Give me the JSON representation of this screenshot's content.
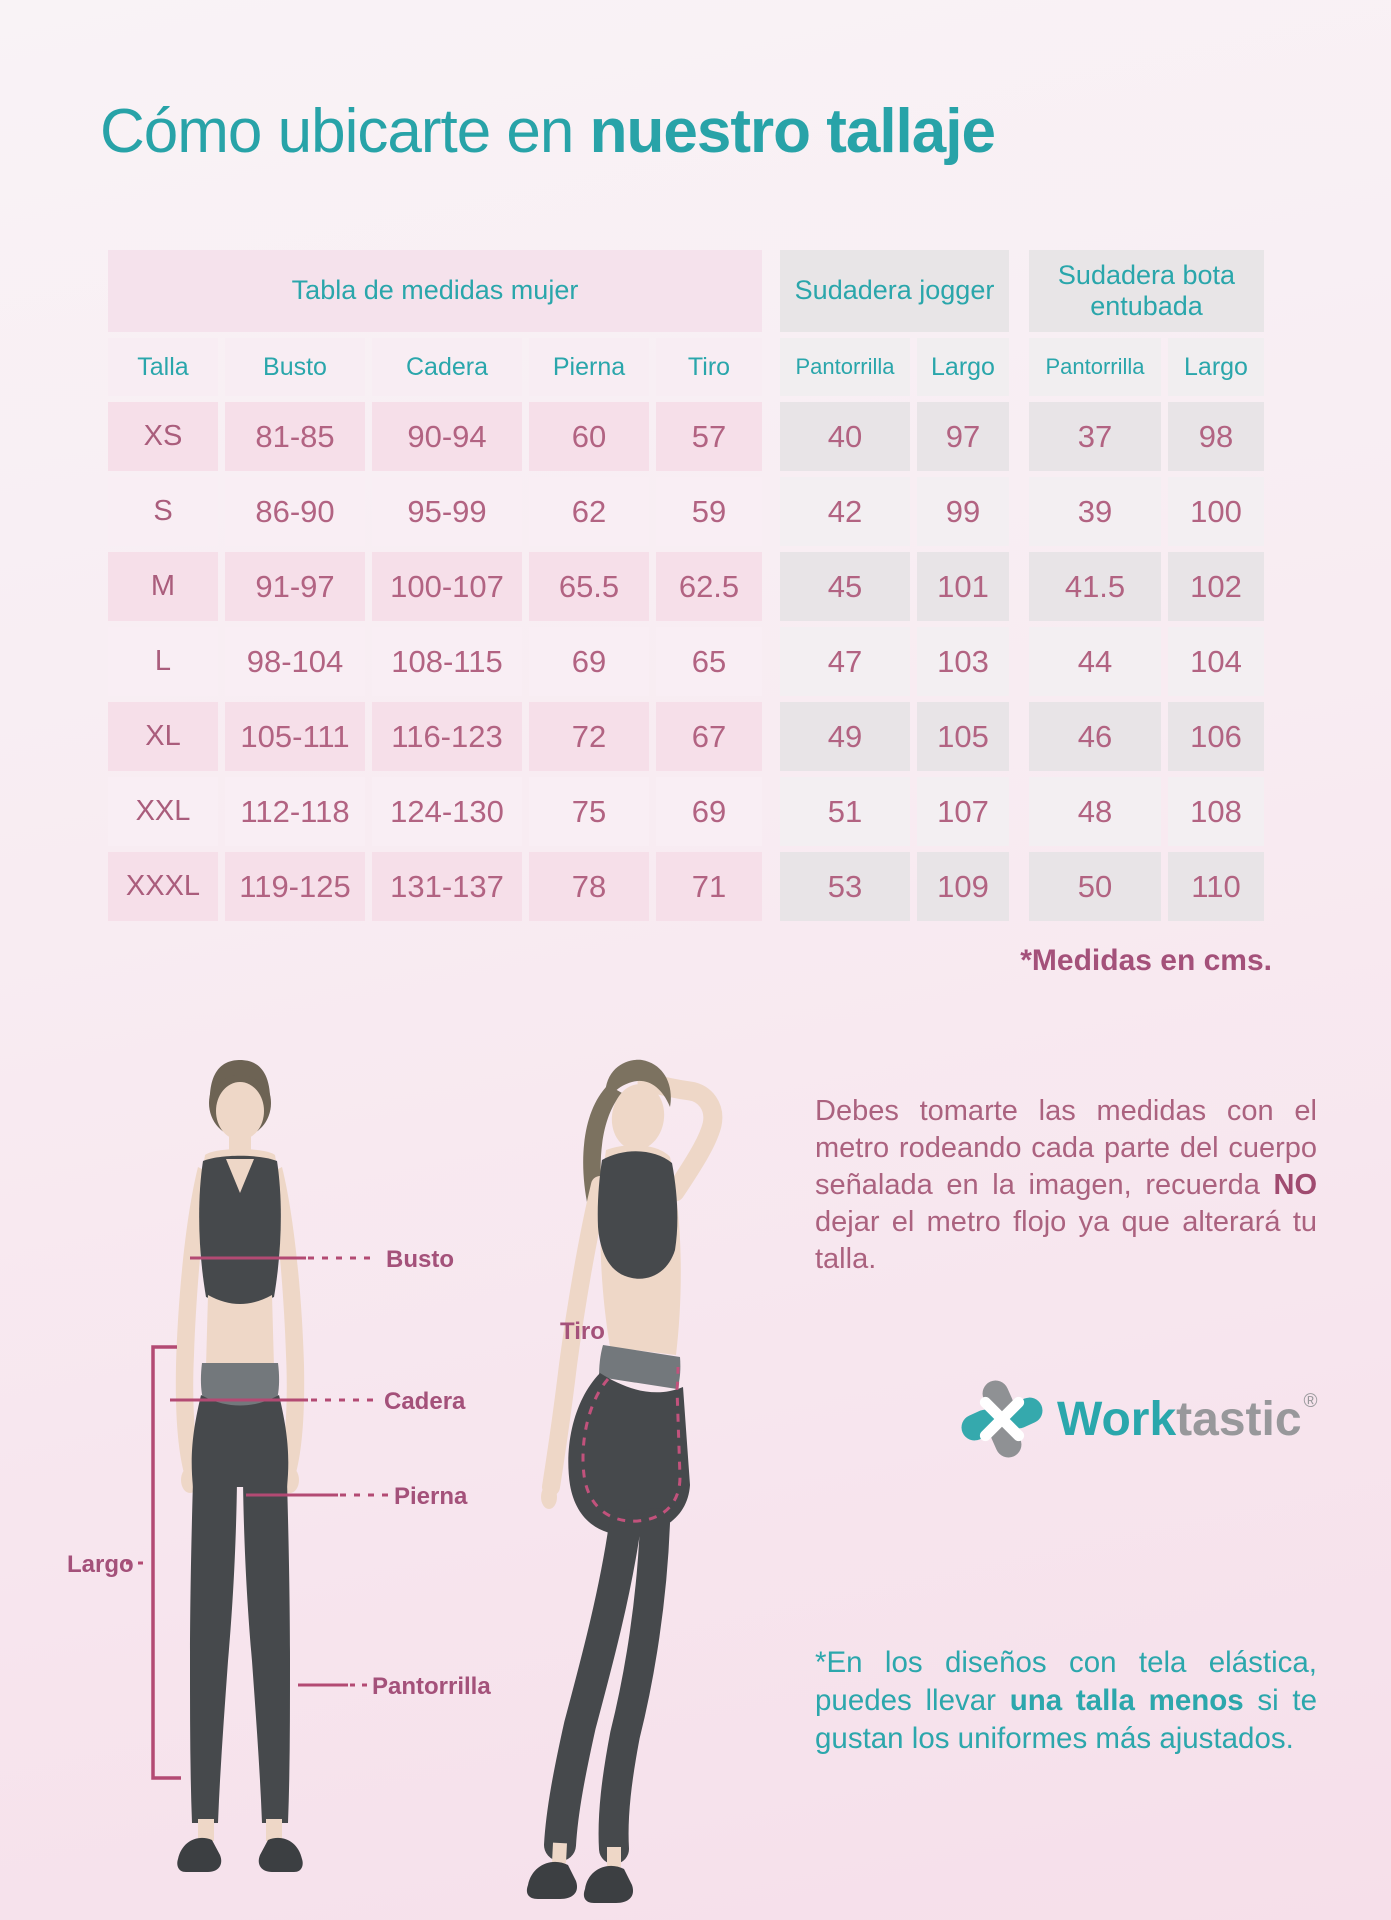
{
  "page": {
    "title_regular": "Cómo ubicarte en ",
    "title_bold": "nuestro tallaje"
  },
  "table": {
    "group_headers": [
      "Tabla de medidas mujer",
      "Sudadera jogger",
      "Sudadera bota entubada"
    ],
    "column_headers": [
      "Talla",
      "Busto",
      "Cadera",
      "Pierna",
      "Tiro",
      "Pantorrilla",
      "Largo",
      "Pantorrilla",
      "Largo"
    ],
    "rows": [
      [
        "XS",
        "81-85",
        "90-94",
        "60",
        "57",
        "40",
        "97",
        "37",
        "98"
      ],
      [
        "S",
        "86-90",
        "95-99",
        "62",
        "59",
        "42",
        "99",
        "39",
        "100"
      ],
      [
        "M",
        "91-97",
        "100-107",
        "65.5",
        "62.5",
        "45",
        "101",
        "41.5",
        "102"
      ],
      [
        "L",
        "98-104",
        "108-115",
        "69",
        "65",
        "47",
        "103",
        "44",
        "104"
      ],
      [
        "XL",
        "105-111",
        "116-123",
        "72",
        "67",
        "49",
        "105",
        "46",
        "106"
      ],
      [
        "XXL",
        "112-118",
        "124-130",
        "75",
        "69",
        "51",
        "107",
        "48",
        "108"
      ],
      [
        "XXXL",
        "119-125",
        "131-137",
        "78",
        "71",
        "53",
        "109",
        "50",
        "110"
      ]
    ],
    "footnote": "*Medidas en cms."
  },
  "measurements": {
    "busto": "Busto",
    "cadera": "Cadera",
    "pierna": "Pierna",
    "largo": "Largo",
    "pantorrilla": "Pantorrilla",
    "tiro": "Tiro"
  },
  "instructions": {
    "before_bold": "Debes tomarte las medidas con el metro rodeando cada parte del cuerpo señalada en la imagen, recuerda ",
    "bold": "NO",
    "after_bold": " dejar el metro flojo ya que alterará tu talla."
  },
  "logo": {
    "brand_primary": "Work",
    "brand_secondary": "tastic",
    "registered": "®"
  },
  "note": {
    "before_bold": "*En los diseños con tela elástica, puedes llevar ",
    "bold": "una talla menos",
    "after_bold": " si te gustan los uniformes más ajustados."
  },
  "colors": {
    "teal": "#2aa6ab",
    "value_mauve": "#b26382",
    "label_mauve": "#a4517a",
    "pink_header_bg": "#f5e2ec",
    "gray_header_bg": "#e8e5e7",
    "pink_row_bg": "#f6dfe9",
    "gray_row_bg": "#e8e4e7",
    "measure_line": "#b34a73",
    "figure_dark": "#46494c",
    "skin": "#eed7c7"
  }
}
